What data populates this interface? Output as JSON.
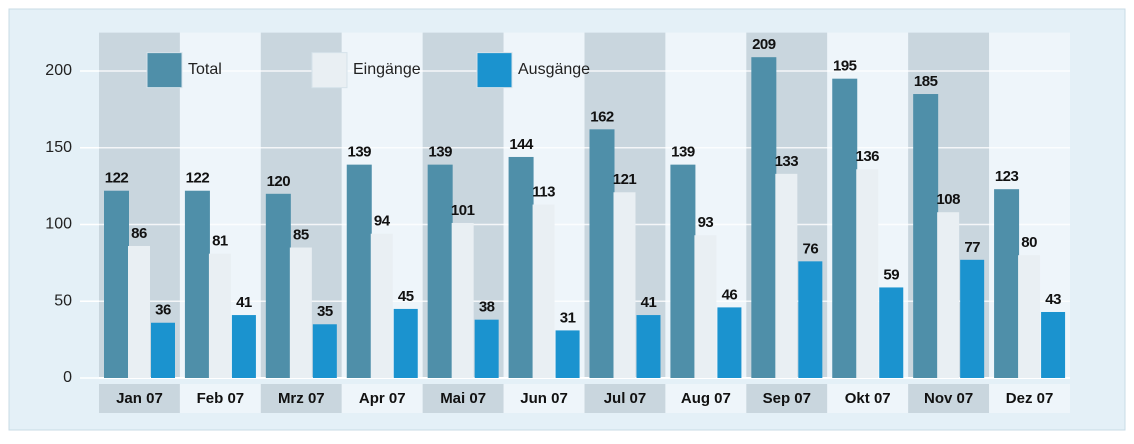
{
  "chart_data": {
    "type": "bar",
    "categories": [
      "Jan 07",
      "Feb 07",
      "Mrz 07",
      "Apr 07",
      "Mai 07",
      "Jun 07",
      "Jul 07",
      "Aug 07",
      "Sep 07",
      "Okt 07",
      "Nov 07",
      "Dez 07"
    ],
    "series": [
      {
        "name": "Total",
        "color": "#4f8fa9",
        "values": [
          122,
          122,
          120,
          139,
          139,
          144,
          162,
          139,
          209,
          195,
          185,
          123
        ]
      },
      {
        "name": "Eingänge",
        "color": "#e9eff3",
        "values": [
          86,
          81,
          85,
          94,
          101,
          113,
          121,
          93,
          133,
          136,
          108,
          80
        ]
      },
      {
        "name": "Ausgänge",
        "color": "#1b93cf",
        "values": [
          36,
          41,
          35,
          45,
          38,
          31,
          41,
          46,
          76,
          59,
          77,
          43
        ]
      }
    ],
    "ylim": [
      0,
      225
    ],
    "yticks": [
      0,
      50,
      100,
      150,
      200
    ],
    "grid": true,
    "legend": "top-left"
  }
}
